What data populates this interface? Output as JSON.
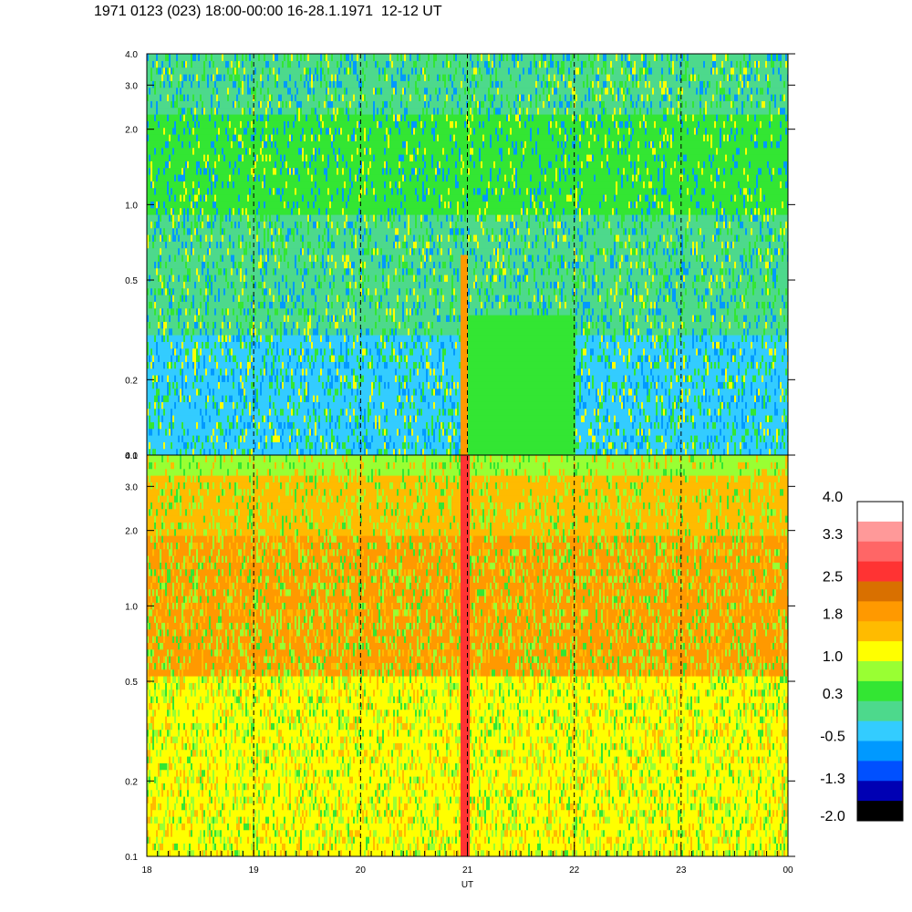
{
  "title": "1971 0123 (023) 18:00-00:00 16-28.1.1971  12-12 UT",
  "chart_data": {
    "type": "heatmap",
    "title": "1971 0123 (023) 18:00-00:00 16-28.1.1971  12-12 UT",
    "xlabel": "UT",
    "x_ticks": [
      "18",
      "19",
      "20",
      "21",
      "22",
      "23",
      "00"
    ],
    "x_range_hours": [
      18,
      24
    ],
    "dashed_vertical_lines_at": [
      19,
      20,
      21,
      22,
      23
    ],
    "y_scale": "log",
    "y_range": [
      0.1,
      4.0
    ],
    "panels": [
      {
        "name": "top",
        "y_ticks": [
          "0.1",
          "0.2",
          "0.5",
          "1.0",
          "2.0",
          "3.0",
          "4.0"
        ],
        "y_tick_values": [
          0.1,
          0.2,
          0.5,
          1.0,
          2.0,
          3.0,
          4.0
        ]
      },
      {
        "name": "bottom",
        "y_ticks": [
          "0.1",
          "0.2",
          "0.5",
          "1.0",
          "2.0",
          "3.0",
          "4.0"
        ],
        "y_tick_values": [
          0.1,
          0.2,
          0.5,
          1.0,
          2.0,
          3.0,
          4.0
        ]
      }
    ],
    "colorbar": {
      "labels": [
        "4.0",
        "3.3",
        "2.5",
        "1.8",
        "1.0",
        "0.3",
        "-0.5",
        "-1.3",
        "-2.0"
      ],
      "label_values": [
        4.0,
        3.3,
        2.5,
        1.8,
        1.0,
        0.3,
        -0.5,
        -1.3,
        -2.0
      ],
      "colors_top_to_bottom": [
        "#ffffff",
        "#ff9999",
        "#ff6666",
        "#ff3333",
        "#d97000",
        "#ff9900",
        "#ffbb00",
        "#ffff00",
        "#99ff33",
        "#33e633",
        "#4dd98c",
        "#33ccff",
        "#0099ff",
        "#0050ff",
        "#0000b3",
        "#000000"
      ]
    },
    "panel_color_summary": {
      "top": [
        "#33ccff",
        "#4dd98c",
        "#33e633",
        "#0099ff",
        "#ffff00",
        "#ff9900"
      ],
      "bottom": [
        "#ffff00",
        "#ffbb00",
        "#ff9900",
        "#99ff33",
        "#33e633",
        "#ff3333"
      ]
    }
  }
}
